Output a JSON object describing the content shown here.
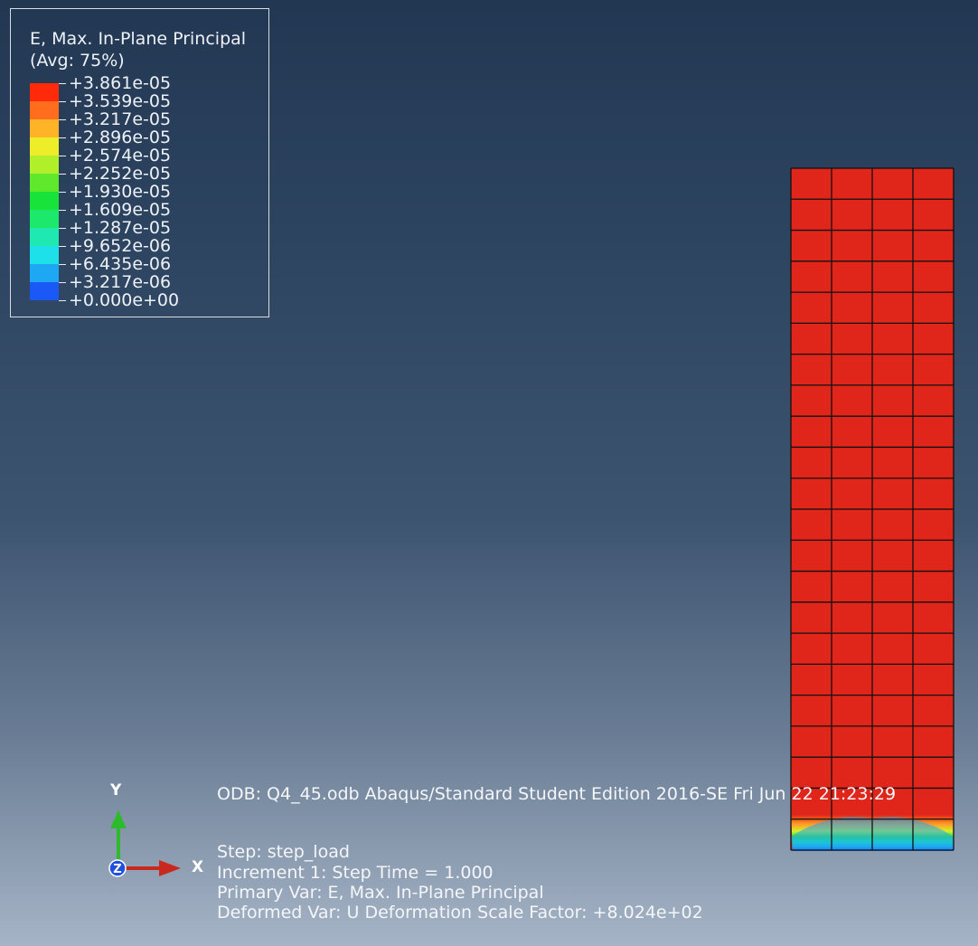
{
  "legend": {
    "title_line1": "E, Max. In-Plane Principal",
    "title_line2": "(Avg: 75%)",
    "values": [
      "+3.861e-05",
      "+3.539e-05",
      "+3.217e-05",
      "+2.896e-05",
      "+2.574e-05",
      "+2.252e-05",
      "+1.930e-05",
      "+1.609e-05",
      "+1.287e-05",
      "+9.652e-06",
      "+6.435e-06",
      "+3.217e-06",
      "+0.000e+00"
    ],
    "colors": [
      "#ff2a0a",
      "#ff6d1d",
      "#ffb326",
      "#eded2a",
      "#b0ef2a",
      "#5fe82c",
      "#17e33a",
      "#1ce86c",
      "#1fe9b0",
      "#1de0e8",
      "#1ea8f3",
      "#1b59f6"
    ]
  },
  "viewport": {
    "odb_line": "ODB: Q4_45.odb    Abaqus/Standard Student Edition 2016-SE    Fri Jun 22 21:23:29",
    "step": "Step: step_load",
    "increment": "Increment      1: Step Time =    1.000",
    "primary_var": "Primary Var: E, Max. In-Plane Principal",
    "deformed_var": "Deformed Var: U   Deformation Scale Factor: +8.024e+02"
  },
  "triad": {
    "y_label": "Y",
    "x_label": "X",
    "z_label": "Z",
    "x_color": "#c8281e",
    "y_color": "#2dbb2d",
    "z_color": "#2050e0"
  },
  "mesh": {
    "columns": 4,
    "rows": 22,
    "element_color": "#e0261a",
    "edge_color": "#111111"
  }
}
